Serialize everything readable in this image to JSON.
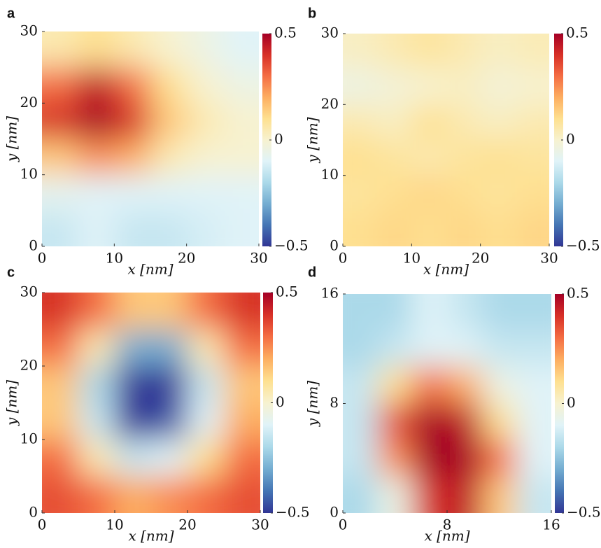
{
  "chart_data": [
    {
      "type": "heatmap",
      "label": "a",
      "xlabel": "x [nm]",
      "ylabel": "y [nm]",
      "xlim": [
        0,
        30
      ],
      "ylim": [
        0,
        30
      ],
      "xticks": [
        0,
        10,
        20,
        30
      ],
      "yticks": [
        0,
        10,
        20,
        30
      ],
      "zlim": [
        -0.5,
        0.5
      ],
      "zticks": [
        {
          "value": 0.5,
          "label": "0.5"
        },
        0,
        {
          "value": -0.5,
          "label": "−0.5"
        }
      ],
      "colormap": [
        "#313695",
        "#4575b4",
        "#74add1",
        "#abd9e9",
        "#e0f3f8",
        "#f7f2d0",
        "#fee090",
        "#fdae61",
        "#f46d43",
        "#d73027",
        "#a50026"
      ],
      "z": [
        [
          0.05,
          0.1,
          0.05,
          0,
          -0.05,
          -0.1
        ],
        [
          0.3,
          0.45,
          0.3,
          0.1,
          0,
          -0.05
        ],
        [
          0.4,
          0.5,
          0.4,
          0.15,
          0.05,
          0
        ],
        [
          0.15,
          0.25,
          0.2,
          0.05,
          0,
          0
        ],
        [
          -0.08,
          -0.1,
          -0.1,
          -0.1,
          -0.1,
          -0.1
        ],
        [
          -0.15,
          -0.1,
          -0.15,
          -0.15,
          -0.12,
          -0.1
        ]
      ]
    },
    {
      "type": "heatmap",
      "label": "b",
      "xlabel": "x [nm]",
      "ylabel": "y [nm]",
      "xlim": [
        0,
        30
      ],
      "ylim": [
        0,
        30
      ],
      "xticks": [
        0,
        10,
        20,
        30
      ],
      "yticks": [
        0,
        10,
        20,
        30
      ],
      "zlim": [
        -0.5,
        0.5
      ],
      "zticks": [
        {
          "value": 0.5,
          "label": "0.5"
        },
        0,
        {
          "value": -0.5,
          "label": "−0.5"
        }
      ],
      "colormap": [
        "#313695",
        "#4575b4",
        "#74add1",
        "#abd9e9",
        "#e0f3f8",
        "#f7f2d0",
        "#fee090",
        "#fdae61",
        "#f46d43",
        "#d73027",
        "#a50026"
      ],
      "z": [
        [
          0.02,
          0.05,
          0.08,
          0.05,
          0.02,
          0.04
        ],
        [
          -0.05,
          -0.02,
          0,
          0.02,
          -0.02,
          0
        ],
        [
          0.05,
          0.02,
          0.1,
          0.05,
          0.02,
          0.05
        ],
        [
          0.1,
          0.08,
          0.05,
          0.08,
          0.1,
          0.08
        ],
        [
          0.08,
          0.1,
          0.12,
          0.1,
          0.08,
          0.1
        ],
        [
          0.1,
          0.12,
          0.1,
          0.12,
          0.1,
          0.12
        ]
      ]
    },
    {
      "type": "heatmap",
      "label": "c",
      "xlabel": "x [nm]",
      "ylabel": "y [nm]",
      "xlim": [
        0,
        30
      ],
      "ylim": [
        0,
        30
      ],
      "xticks": [
        0,
        10,
        20,
        30
      ],
      "yticks": [
        0,
        10,
        20,
        30
      ],
      "zlim": [
        -0.5,
        0.5
      ],
      "zticks": [
        {
          "value": 0.5,
          "label": "0.5"
        },
        0,
        {
          "value": -0.5,
          "label": "−0.5"
        }
      ],
      "colormap": [
        "#313695",
        "#4575b4",
        "#74add1",
        "#abd9e9",
        "#e0f3f8",
        "#f7f2d0",
        "#fee090",
        "#fdae61",
        "#f46d43",
        "#d73027",
        "#a50026"
      ],
      "z": [
        [
          0.4,
          0.3,
          0.15,
          0.15,
          0.3,
          0.4
        ],
        [
          0.3,
          0.05,
          -0.3,
          -0.3,
          0.05,
          0.3
        ],
        [
          0.15,
          -0.2,
          -0.5,
          -0.5,
          -0.15,
          0.15
        ],
        [
          0.15,
          -0.15,
          -0.5,
          -0.45,
          -0.1,
          0.2
        ],
        [
          0.3,
          0.05,
          -0.15,
          -0.1,
          0.1,
          0.3
        ],
        [
          0.35,
          0.3,
          0.2,
          0.25,
          0.3,
          0.35
        ]
      ]
    },
    {
      "type": "heatmap",
      "label": "d",
      "xlabel": "x [nm]",
      "ylabel": "y [nm]",
      "xlim": [
        0,
        16
      ],
      "ylim": [
        0,
        16
      ],
      "xticks": [
        0,
        8,
        16
      ],
      "yticks": [
        0,
        8,
        16
      ],
      "zlim": [
        -0.5,
        0.5
      ],
      "zticks": [
        {
          "value": 0.5,
          "label": "0.5"
        },
        0,
        {
          "value": -0.5,
          "label": "−0.5"
        }
      ],
      "colormap": [
        "#313695",
        "#4575b4",
        "#74add1",
        "#abd9e9",
        "#e0f3f8",
        "#f7f2d0",
        "#fee090",
        "#fdae61",
        "#f46d43",
        "#d73027",
        "#a50026"
      ],
      "z": [
        [
          -0.2,
          -0.2,
          -0.1,
          -0.15,
          -0.2,
          -0.2
        ],
        [
          -0.2,
          -0.15,
          -0.1,
          -0.1,
          -0.15,
          -0.15
        ],
        [
          -0.15,
          0.1,
          0.3,
          0.2,
          -0.05,
          -0.1
        ],
        [
          -0.15,
          0.35,
          0.5,
          0.45,
          0.1,
          -0.1
        ],
        [
          -0.15,
          0.25,
          0.5,
          0.5,
          0.3,
          -0.1
        ],
        [
          -0.2,
          -0.05,
          0.4,
          0.45,
          0.15,
          -0.15
        ]
      ]
    }
  ]
}
